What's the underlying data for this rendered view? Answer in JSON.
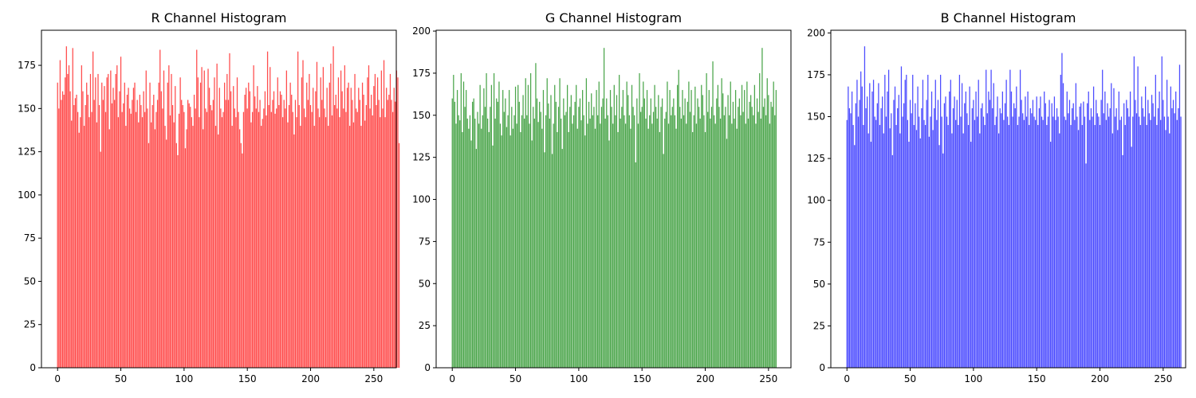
{
  "figure": {
    "background": "#ffffff"
  },
  "chart_data": [
    {
      "type": "bar",
      "title": "R Channel Histogram",
      "xlabel": "",
      "ylabel": "",
      "color": "#ff0000",
      "alpha": 0.7,
      "xlim": [
        -12.75,
        267.75
      ],
      "ylim": [
        0,
        195.3
      ],
      "xticks": [
        0,
        50,
        100,
        150,
        200,
        250
      ],
      "yticks": [
        0,
        25,
        50,
        75,
        100,
        125,
        150,
        175
      ],
      "grid": false,
      "categories_note": "pixel intensity 0-255",
      "values": [
        165,
        150,
        178,
        155,
        160,
        158,
        168,
        186,
        170,
        175,
        160,
        143,
        185,
        152,
        156,
        158,
        148,
        136,
        145,
        175,
        160,
        140,
        152,
        165,
        158,
        145,
        170,
        148,
        183,
        155,
        168,
        142,
        170,
        152,
        125,
        165,
        155,
        163,
        148,
        168,
        170,
        138,
        172,
        153,
        162,
        155,
        170,
        175,
        145,
        160,
        180,
        148,
        153,
        165,
        140,
        158,
        162,
        150,
        147,
        155,
        162,
        165,
        148,
        155,
        142,
        158,
        152,
        145,
        160,
        148,
        172,
        150,
        130,
        165,
        142,
        152,
        158,
        138,
        148,
        155,
        165,
        184,
        160,
        150,
        172,
        140,
        132,
        165,
        175,
        146,
        170,
        152,
        142,
        163,
        130,
        123,
        147,
        168,
        155,
        152,
        148,
        127,
        138,
        155,
        153,
        151,
        145,
        140,
        158,
        150,
        184,
        168,
        145,
        165,
        174,
        138,
        172,
        150,
        148,
        173,
        162,
        152,
        149,
        155,
        168,
        140,
        176,
        135,
        162,
        150,
        145,
        148,
        165,
        155,
        170,
        155,
        182,
        160,
        140,
        163,
        150,
        145,
        168,
        148,
        138,
        130,
        124,
        148,
        158,
        162,
        150,
        165,
        160,
        142,
        148,
        175,
        157,
        150,
        163,
        148,
        155,
        140,
        144,
        150,
        160,
        146,
        183,
        152,
        174,
        148,
        155,
        160,
        147,
        150,
        168,
        152,
        160,
        158,
        145,
        155,
        150,
        172,
        142,
        152,
        165,
        158,
        148,
        135,
        155,
        145,
        183,
        152,
        140,
        168,
        178,
        150,
        145,
        165,
        155,
        170,
        152,
        148,
        162,
        140,
        160,
        177,
        150,
        145,
        168,
        155,
        174,
        150,
        145,
        162,
        140,
        165,
        176,
        146,
        186,
        152,
        158,
        150,
        168,
        145,
        172,
        160,
        150,
        175,
        148,
        162,
        165,
        140,
        162,
        155,
        142,
        170,
        150,
        148,
        162,
        155,
        140,
        165,
        158,
        143,
        152,
        168,
        175,
        150,
        158,
        146,
        163,
        170,
        152,
        168,
        155,
        145,
        172,
        150,
        178,
        145,
        162,
        155,
        158,
        170,
        155,
        148,
        162,
        154,
        172,
        168,
        130
      ]
    },
    {
      "type": "bar",
      "title": "G Channel Histogram",
      "xlabel": "",
      "ylabel": "",
      "color": "#008000",
      "alpha": 0.7,
      "xlim": [
        -12.75,
        267.75
      ],
      "ylim": [
        0,
        200.5
      ],
      "xticks": [
        0,
        50,
        100,
        150,
        200,
        250
      ],
      "yticks": [
        0,
        25,
        50,
        75,
        100,
        125,
        150,
        175,
        200
      ],
      "grid": false,
      "categories_note": "pixel intensity 0-255",
      "values": [
        160,
        174,
        158,
        145,
        165,
        150,
        147,
        175,
        140,
        170,
        155,
        165,
        148,
        142,
        150,
        135,
        158,
        160,
        148,
        130,
        152,
        145,
        168,
        142,
        150,
        166,
        155,
        175,
        148,
        140,
        155,
        168,
        132,
        175,
        148,
        160,
        158,
        170,
        145,
        138,
        165,
        152,
        160,
        143,
        150,
        165,
        138,
        155,
        142,
        150,
        167,
        145,
        168,
        158,
        140,
        150,
        162,
        148,
        172,
        150,
        168,
        145,
        175,
        135,
        155,
        148,
        181,
        160,
        146,
        158,
        152,
        142,
        165,
        128,
        150,
        172,
        157,
        148,
        162,
        127,
        145,
        168,
        158,
        140,
        155,
        172,
        148,
        130,
        160,
        150,
        152,
        168,
        140,
        155,
        162,
        145,
        150,
        158,
        168,
        142,
        155,
        160,
        147,
        165,
        150,
        138,
        172,
        145,
        158,
        148,
        163,
        150,
        155,
        142,
        165,
        150,
        170,
        145,
        155,
        160,
        190,
        148,
        160,
        150,
        135,
        165,
        155,
        145,
        168,
        150,
        162,
        140,
        174,
        148,
        155,
        165,
        150,
        145,
        170,
        162,
        150,
        142,
        168,
        155,
        150,
        122,
        160,
        145,
        175,
        152,
        155,
        170,
        160,
        148,
        165,
        142,
        150,
        160,
        145,
        152,
        168,
        155,
        148,
        162,
        140,
        155,
        160,
        127,
        148,
        152,
        170,
        145,
        165,
        150,
        155,
        160,
        150,
        142,
        168,
        177,
        155,
        148,
        165,
        150,
        160,
        145,
        158,
        170,
        152,
        165,
        140,
        150,
        167,
        145,
        160,
        155,
        148,
        168,
        162,
        150,
        140,
        175,
        152,
        165,
        148,
        155,
        182,
        150,
        145,
        160,
        168,
        155,
        148,
        172,
        163,
        150,
        155,
        136,
        162,
        150,
        170,
        145,
        158,
        148,
        165,
        142,
        155,
        160,
        150,
        168,
        152,
        165,
        145,
        170,
        148,
        158,
        162,
        155,
        150,
        168,
        145,
        160,
        152,
        175,
        148,
        190,
        155,
        160,
        150,
        172,
        162,
        145,
        158,
        155,
        170,
        150,
        165
      ]
    },
    {
      "type": "bar",
      "title": "B Channel Histogram",
      "xlabel": "",
      "ylabel": "",
      "color": "#0000ff",
      "alpha": 0.7,
      "xlim": [
        -12.75,
        267.75
      ],
      "ylim": [
        0,
        201.6
      ],
      "xticks": [
        0,
        50,
        100,
        150,
        200,
        250
      ],
      "yticks": [
        0,
        25,
        50,
        75,
        100,
        125,
        150,
        175,
        200
      ],
      "grid": false,
      "categories_note": "pixel intensity 0-255",
      "values": [
        148,
        168,
        155,
        152,
        165,
        145,
        133,
        158,
        172,
        150,
        160,
        177,
        168,
        145,
        192,
        155,
        162,
        140,
        170,
        135,
        165,
        172,
        150,
        148,
        158,
        170,
        145,
        155,
        162,
        140,
        175,
        150,
        165,
        178,
        143,
        152,
        127,
        160,
        168,
        145,
        155,
        163,
        140,
        180,
        150,
        158,
        172,
        175,
        148,
        135,
        160,
        152,
        175,
        145,
        158,
        142,
        168,
        150,
        137,
        155,
        172,
        148,
        145,
        160,
        175,
        138,
        150,
        165,
        142,
        155,
        172,
        148,
        160,
        133,
        175,
        150,
        128,
        158,
        162,
        150,
        145,
        165,
        172,
        140,
        155,
        162,
        148,
        160,
        145,
        175,
        150,
        170,
        140,
        158,
        165,
        152,
        145,
        168,
        135,
        155,
        160,
        148,
        165,
        150,
        172,
        140,
        155,
        158,
        150,
        145,
        178,
        152,
        165,
        160,
        178,
        155,
        170,
        145,
        150,
        162,
        140,
        155,
        152,
        165,
        148,
        158,
        172,
        150,
        145,
        178,
        165,
        150,
        158,
        155,
        168,
        145,
        150,
        178,
        160,
        152,
        148,
        162,
        150,
        165,
        145,
        155,
        152,
        160,
        150,
        148,
        162,
        145,
        155,
        162,
        150,
        148,
        165,
        158,
        145,
        150,
        160,
        135,
        158,
        150,
        162,
        148,
        155,
        150,
        140,
        175,
        188,
        170,
        150,
        148,
        165,
        152,
        160,
        145,
        155,
        158,
        148,
        170,
        150,
        142,
        156,
        158,
        145,
        159,
        150,
        122,
        158,
        165,
        148,
        155,
        150,
        168,
        145,
        160,
        152,
        150,
        145,
        160,
        178,
        152,
        165,
        148,
        158,
        150,
        155,
        170,
        140,
        167,
        150,
        155,
        142,
        165,
        148,
        150,
        127,
        158,
        145,
        160,
        155,
        150,
        165,
        132,
        150,
        186,
        160,
        152,
        180,
        150,
        145,
        162,
        155,
        150,
        168,
        145,
        160,
        152,
        148,
        163,
        158,
        150,
        175,
        145,
        155,
        165,
        148,
        186,
        160,
        150,
        142,
        172,
        150,
        140,
        168,
        155,
        160,
        152,
        165,
        148,
        155,
        181,
        150
      ]
    }
  ]
}
